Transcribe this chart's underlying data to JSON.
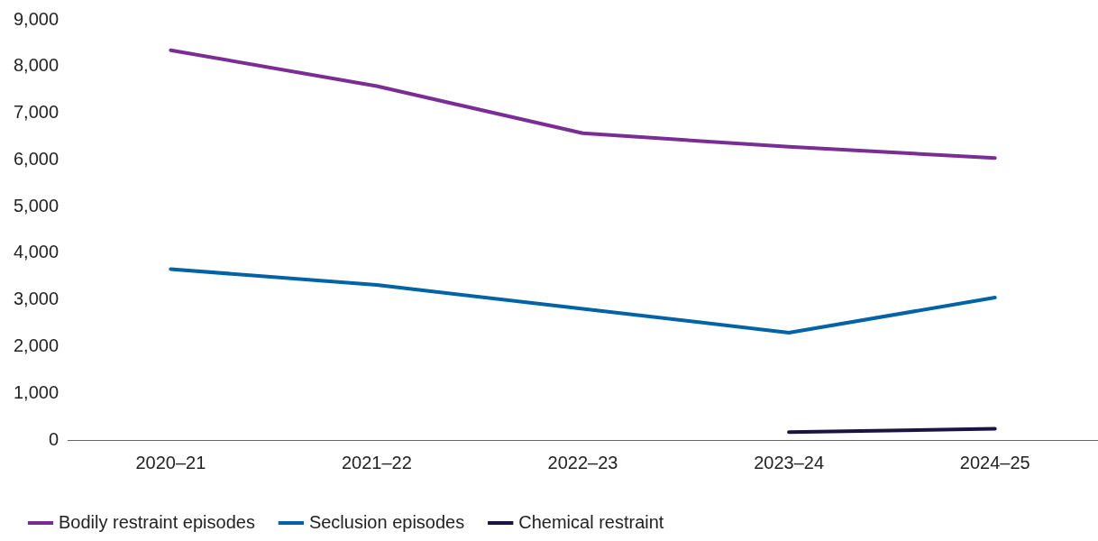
{
  "chart_data": {
    "type": "line",
    "categories": [
      "2020–21",
      "2021–22",
      "2022–23",
      "2023–24",
      "2024–25"
    ],
    "series": [
      {
        "name": "Bodily restraint episodes",
        "color": "#7b2d96",
        "values": [
          8350,
          7580,
          6570,
          6280,
          6040
        ]
      },
      {
        "name": "Seclusion episodes",
        "color": "#0063a6",
        "values": [
          3660,
          3320,
          2810,
          2300,
          3050
        ]
      },
      {
        "name": "Chemical restraint",
        "color": "#1b1440",
        "values": [
          null,
          null,
          null,
          170,
          240
        ]
      }
    ],
    "ylim": [
      0,
      9000
    ],
    "yticks": [
      0,
      {
        "value": 1000,
        "label": "1,000"
      },
      {
        "value": 2000,
        "label": "2,000"
      },
      {
        "value": 3000,
        "label": "3,000"
      },
      {
        "value": 4000,
        "label": "4,000"
      },
      {
        "value": 5000,
        "label": "5,000"
      },
      {
        "value": 6000,
        "label": "6,000"
      },
      {
        "value": 7000,
        "label": "7,000"
      },
      {
        "value": 8000,
        "label": "8,000"
      },
      {
        "value": 9000,
        "label": "9,000"
      }
    ],
    "grid": false,
    "legend": "bottom",
    "marker": "none",
    "line_style": "solid"
  }
}
